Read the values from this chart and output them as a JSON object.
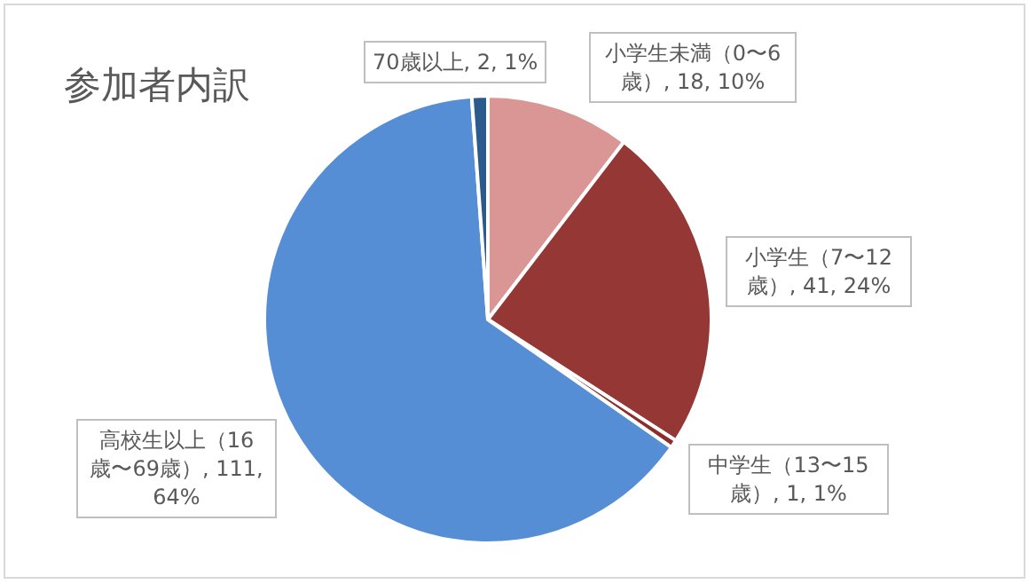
{
  "chart_data": {
    "type": "pie",
    "title": "参加者内訳",
    "categories": [
      "小学生未満（0〜6歳）",
      "小学生（7〜12歳）",
      "中学生（13〜15歳）",
      "高校生以上（16歳〜69歳）",
      "70歳以上"
    ],
    "values": [
      18,
      41,
      1,
      111,
      2
    ],
    "value_labels": [
      "18, 10%",
      "41, 24%",
      "1, 1%",
      "111, 64%",
      "2, 1%"
    ],
    "colors": [
      "#d99694",
      "#953735",
      "#8b2f2d",
      "#558ed5",
      "#2c5a8c"
    ],
    "legend": false
  }
}
